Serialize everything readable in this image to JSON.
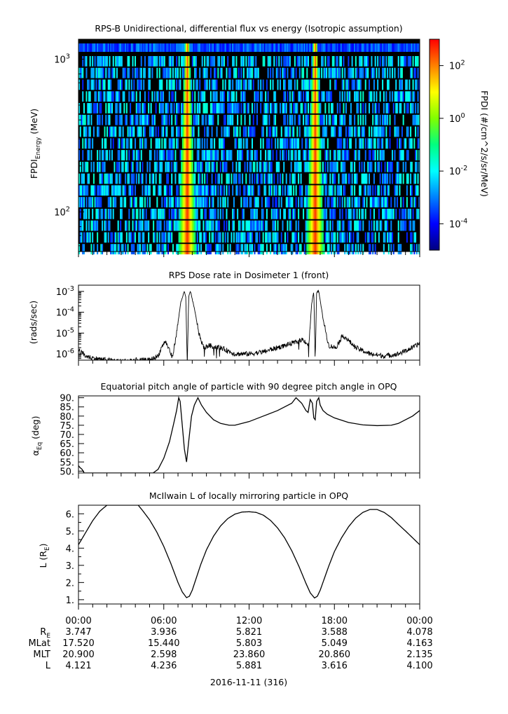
{
  "chart_data": [
    {
      "type": "heatmap",
      "title": "RPS-B  Unidirectional, differential flux vs energy (Isotropic assumption)",
      "ylabel_main": "FPDI",
      "ylabel_sub": "Energy",
      "ylabel_unit": "(MeV)",
      "yscale": "log",
      "ylim": [
        55,
        1350
      ],
      "yticks": [
        {
          "value": 100,
          "base": "10",
          "exp": "2"
        },
        {
          "value": 1000,
          "base": "10",
          "exp": "3"
        }
      ],
      "x_range_hours": [
        0,
        24
      ],
      "energy_bins": 18,
      "time_bins": 280,
      "band_centers_hours": [
        7.65,
        16.65
      ],
      "band_halfwidth_base_hours": 0.65,
      "colorbar": {
        "label": "FPDI (#/cm^2/s/sr/MeV)",
        "scale": "log",
        "range_exp": [
          -5,
          3
        ],
        "ticks": [
          {
            "value": -4,
            "base": "10",
            "exp": "-4"
          },
          {
            "value": -2,
            "base": "10",
            "exp": "-2"
          },
          {
            "value": 0,
            "base": "10",
            "exp": "0"
          },
          {
            "value": 2,
            "base": "10",
            "exp": "2"
          }
        ],
        "colors": [
          "#000080",
          "#0000ff",
          "#0080ff",
          "#00ffff",
          "#00ff80",
          "#80ff00",
          "#ffff00",
          "#ff8000",
          "#ff0000"
        ]
      }
    },
    {
      "type": "line",
      "title": "RPS  Dose rate in Dosimeter 1 (front)",
      "ylabel": "(rads/sec)",
      "yscale": "log",
      "ylim_exp": [
        -6.3,
        -2.7
      ],
      "yticks": [
        {
          "value": -6,
          "base": "10",
          "exp": "-6"
        },
        {
          "value": -5,
          "base": "10",
          "exp": "-5"
        },
        {
          "value": -4,
          "base": "10",
          "exp": "-4"
        },
        {
          "value": -3,
          "base": "10",
          "exp": "-3"
        }
      ],
      "x_hours": [
        0,
        0.5,
        1,
        2,
        3,
        4,
        5,
        5.6,
        5.9,
        6.1,
        6.4,
        6.6,
        6.9,
        7.2,
        7.45,
        7.55,
        7.65,
        7.75,
        7.85,
        7.95,
        8.2,
        8.5,
        8.8,
        9.2,
        10,
        11,
        12,
        13,
        14,
        15,
        15.8,
        16.2,
        16.4,
        16.55,
        16.65,
        16.75,
        16.9,
        17.2,
        17.6,
        18.1,
        18.6,
        19.5,
        20.5,
        21.5,
        22.5,
        23.5,
        24
      ],
      "log_values": [
        -5.8,
        -6.1,
        -6.2,
        -6.3,
        -6.35,
        -6.3,
        -6.3,
        -6.1,
        -5.6,
        -5.4,
        -5.8,
        -6.2,
        -5.0,
        -3.5,
        -3.0,
        -3.3,
        -6.6,
        -3.3,
        -3.0,
        -3.2,
        -4.0,
        -5.1,
        -5.7,
        -5.6,
        -5.7,
        -6.0,
        -6.0,
        -5.9,
        -5.7,
        -5.5,
        -5.3,
        -5.6,
        -3.6,
        -3.0,
        -6.4,
        -3.0,
        -3.0,
        -4.3,
        -5.6,
        -5.7,
        -5.1,
        -5.7,
        -6.0,
        -6.1,
        -6.0,
        -5.7,
        -5.5
      ],
      "noise_dex": 0.12
    },
    {
      "type": "line",
      "title": "Equatorial pitch angle of particle with 90 degree pitch angle in OPQ",
      "ylabel_main": "α",
      "ylabel_sub": "Eq",
      "ylabel_unit": "(deg)",
      "ylim": [
        49,
        91
      ],
      "yticks": [
        50,
        55,
        60,
        65,
        70,
        75,
        80,
        85,
        90
      ],
      "ytick_labels": [
        "50.",
        "55.",
        "60.",
        "65.",
        "70.",
        "75.",
        "80.",
        "85.",
        "90."
      ],
      "x_hours": [
        0,
        0.1,
        0.25,
        0.4,
        5.25,
        5.6,
        6,
        6.4,
        6.7,
        6.9,
        7.05,
        7.15,
        7.3,
        7.45,
        7.6,
        7.75,
        7.95,
        8.15,
        8.4,
        8.65,
        9,
        9.5,
        10,
        10.6,
        11,
        12,
        13,
        14,
        15,
        15.3,
        15.7,
        16.0,
        16.15,
        16.3,
        16.45,
        16.55,
        16.65,
        16.75,
        16.9,
        17.0,
        17.2,
        17.5,
        18,
        19,
        20,
        21,
        22,
        22.5,
        23,
        23.5,
        24
      ],
      "values": [
        53,
        52,
        51,
        49,
        49,
        51,
        57,
        66,
        76,
        83,
        90,
        88,
        75,
        62,
        55,
        66,
        80,
        86,
        90,
        86,
        82,
        78,
        76,
        75,
        75,
        77,
        80,
        83,
        87,
        90,
        87,
        83,
        82,
        89,
        87,
        79,
        78,
        88,
        90,
        86,
        83,
        81,
        79,
        76.5,
        75.2,
        74.8,
        75,
        76,
        78,
        80,
        83
      ]
    },
    {
      "type": "line",
      "title": "McIlwain L of locally mirroring particle in OPQ",
      "ylabel_main": "L (R",
      "ylabel_sub": "E",
      "ylabel_close": ")",
      "ylim": [
        0.75,
        6.5
      ],
      "yticks": [
        1,
        2,
        3,
        4,
        5,
        6
      ],
      "ytick_labels": [
        "1.",
        "2.",
        "3.",
        "4.",
        "5.",
        "6."
      ],
      "x_hours": [
        0,
        0.5,
        1,
        1.5,
        2.0,
        4.2,
        4.5,
        5,
        5.5,
        6,
        6.5,
        7,
        7.3,
        7.6,
        7.8,
        8.0,
        8.3,
        8.6,
        9,
        9.5,
        10,
        10.5,
        11,
        11.5,
        12,
        12.5,
        13,
        13.5,
        14,
        14.5,
        15,
        15.5,
        16,
        16.3,
        16.6,
        16.8,
        17.0,
        17.3,
        17.6,
        18,
        18.5,
        19,
        19.5,
        20,
        20.5,
        21,
        21.5,
        22,
        22.5,
        23,
        23.5,
        24
      ],
      "values": [
        4.2,
        4.9,
        5.6,
        6.15,
        6.5,
        6.5,
        6.2,
        5.65,
        4.95,
        4.1,
        3.1,
        2.0,
        1.45,
        1.12,
        1.2,
        1.55,
        2.3,
        3.05,
        3.9,
        4.7,
        5.3,
        5.72,
        5.98,
        6.1,
        6.12,
        6.08,
        5.92,
        5.62,
        5.18,
        4.6,
        3.85,
        2.95,
        1.95,
        1.4,
        1.1,
        1.2,
        1.55,
        2.25,
        2.95,
        3.8,
        4.6,
        5.25,
        5.75,
        6.08,
        6.25,
        6.25,
        6.08,
        5.78,
        5.38,
        5.0,
        4.6,
        4.2
      ]
    }
  ],
  "x_axis": {
    "range_hours": [
      0,
      24
    ],
    "major_ticks_hours": [
      0,
      6,
      12,
      18,
      24
    ],
    "minor_ticks_hours": [
      1,
      2,
      3,
      4,
      5,
      7,
      8,
      9,
      10,
      11,
      13,
      14,
      15,
      16,
      17,
      19,
      20,
      21,
      22,
      23
    ]
  },
  "ephemeris": {
    "time_labels": [
      "00:00",
      "06:00",
      "12:00",
      "18:00",
      "00:00"
    ],
    "rows": [
      {
        "label": "R",
        "label_sub": "E",
        "values": [
          "3.747",
          "3.936",
          "5.821",
          "3.588",
          "4.078"
        ]
      },
      {
        "label": "MLat",
        "label_sub": "",
        "values": [
          "17.520",
          "15.440",
          "5.803",
          "5.049",
          "4.163"
        ]
      },
      {
        "label": "MLT",
        "label_sub": "",
        "values": [
          "20.900",
          "2.598",
          "23.860",
          "20.860",
          "2.135"
        ]
      },
      {
        "label": "L",
        "label_sub": "",
        "values": [
          "4.121",
          "4.236",
          "5.881",
          "3.616",
          "4.100"
        ]
      }
    ],
    "date_label": "2016-11-11 (316)"
  }
}
